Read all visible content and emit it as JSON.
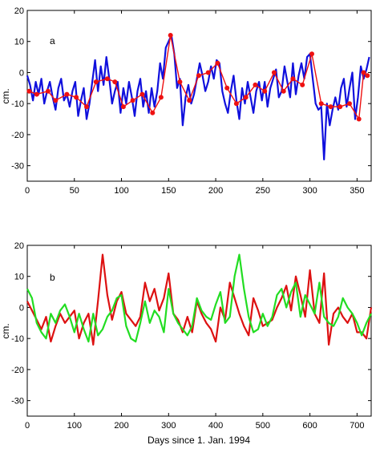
{
  "chart_data": [
    {
      "type": "line",
      "panel_label": "a",
      "xlabel": "",
      "ylabel": "cm.",
      "xlim": [
        0,
        365
      ],
      "ylim": [
        -35,
        20
      ],
      "xticks": [
        0,
        50,
        100,
        150,
        200,
        250,
        300,
        350
      ],
      "yticks": [
        -30,
        -20,
        -10,
        0,
        10,
        20
      ],
      "grid": false,
      "series": [
        {
          "color": "#1010dd",
          "marker": "none",
          "x": [
            0,
            3,
            6,
            9,
            12,
            15,
            18,
            21,
            24,
            27,
            30,
            33,
            36,
            39,
            42,
            45,
            48,
            51,
            54,
            57,
            60,
            63,
            66,
            69,
            72,
            75,
            78,
            81,
            84,
            87,
            90,
            93,
            96,
            99,
            102,
            105,
            108,
            111,
            114,
            117,
            120,
            123,
            126,
            129,
            132,
            135,
            138,
            141,
            144,
            147,
            150,
            153,
            156,
            159,
            162,
            165,
            168,
            171,
            174,
            177,
            180,
            183,
            186,
            189,
            192,
            195,
            198,
            201,
            204,
            207,
            210,
            213,
            216,
            219,
            222,
            225,
            228,
            231,
            234,
            237,
            240,
            243,
            246,
            249,
            252,
            255,
            258,
            261,
            264,
            267,
            270,
            273,
            276,
            279,
            282,
            285,
            288,
            291,
            294,
            297,
            300,
            303,
            306,
            309,
            312,
            315,
            318,
            321,
            324,
            327,
            330,
            333,
            336,
            339,
            342,
            345,
            348,
            351,
            354,
            357,
            360,
            363
          ],
          "y": [
            -1,
            -4,
            -9,
            -3,
            -7,
            -2,
            -10,
            -6,
            -3,
            -8,
            -12,
            -5,
            -2,
            -9,
            -7,
            -11,
            -6,
            -3,
            -14,
            -9,
            -5,
            -15,
            -10,
            -3,
            4,
            -6,
            2,
            -4,
            5,
            -2,
            -10,
            -6,
            -3,
            -13,
            -5,
            -10,
            -3,
            -8,
            -14,
            -6,
            -2,
            -11,
            -6,
            -13,
            -5,
            -11,
            -6,
            3,
            -2,
            8,
            10,
            12,
            6,
            -5,
            -2,
            -17,
            -8,
            -4,
            -10,
            -7,
            -2,
            3,
            -1,
            -6,
            -3,
            2,
            -2,
            4,
            3,
            -6,
            -10,
            -13,
            -6,
            -1,
            -9,
            -15,
            -5,
            -10,
            -3,
            -8,
            -13,
            -6,
            -3,
            -9,
            -3,
            -11,
            -5,
            -2,
            1,
            -8,
            -6,
            2,
            -3,
            -8,
            3,
            -7,
            -1,
            3,
            -2,
            5,
            6,
            -2,
            -10,
            -12,
            -11,
            -28,
            -10,
            -17,
            -12,
            -8,
            -12,
            -5,
            -2,
            -11,
            -5,
            0,
            -15,
            -8,
            2,
            -2,
            1,
            5
          ]
        },
        {
          "color": "#ee1111",
          "marker": "circle",
          "x": [
            2,
            10,
            22,
            30,
            42,
            52,
            63,
            73,
            85,
            93,
            102,
            112,
            122,
            133,
            142,
            152,
            162,
            172,
            182,
            192,
            202,
            212,
            222,
            232,
            242,
            252,
            262,
            272,
            282,
            292,
            302,
            312,
            322,
            332,
            342,
            352,
            357,
            361
          ],
          "y": [
            -6,
            -7,
            -6,
            -9,
            -7,
            -8,
            -11,
            -3,
            -2,
            -3,
            -11,
            -9,
            -7,
            -13,
            -8,
            12,
            -3,
            -9,
            -1,
            0,
            3,
            -5,
            -10,
            -8,
            -4,
            -6,
            0,
            -6,
            -2,
            -4,
            6,
            -10,
            -11,
            -11,
            -10,
            -15,
            0,
            -1
          ]
        }
      ]
    },
    {
      "type": "line",
      "panel_label": "b",
      "xlabel": "Days since 1. Jan. 1994",
      "ylabel": "cm.",
      "xlim": [
        0,
        730
      ],
      "ylim": [
        -35,
        20
      ],
      "xticks": [
        0,
        100,
        200,
        300,
        400,
        500,
        600,
        700
      ],
      "yticks": [
        -30,
        -20,
        -10,
        0,
        10,
        20
      ],
      "grid": false,
      "series": [
        {
          "color": "#dd1111",
          "marker": "none",
          "x": [
            0,
            10,
            20,
            30,
            40,
            50,
            60,
            70,
            80,
            90,
            100,
            110,
            120,
            130,
            140,
            150,
            160,
            170,
            180,
            190,
            200,
            210,
            220,
            230,
            240,
            250,
            260,
            270,
            280,
            290,
            300,
            310,
            320,
            330,
            340,
            350,
            360,
            370,
            380,
            390,
            400,
            410,
            420,
            430,
            440,
            450,
            460,
            470,
            480,
            490,
            500,
            510,
            520,
            530,
            540,
            550,
            560,
            570,
            580,
            590,
            600,
            610,
            620,
            630,
            640,
            650,
            660,
            670,
            680,
            690,
            700,
            710,
            720,
            730
          ],
          "y": [
            2,
            -1,
            -4,
            -7,
            -3,
            -11,
            -6,
            -2,
            -5,
            -3,
            -1,
            -10,
            -5,
            -2,
            -12,
            2,
            17,
            4,
            -4,
            2,
            5,
            -2,
            -4,
            -6,
            -3,
            8,
            2,
            6,
            -1,
            3,
            11,
            -2,
            -4,
            -8,
            -3,
            -8,
            2,
            -2,
            -5,
            -7,
            -11,
            0,
            -4,
            8,
            3,
            -2,
            -6,
            -9,
            3,
            -1,
            -6,
            -5,
            -4,
            0,
            3,
            7,
            -1,
            10,
            4,
            -3,
            12,
            -2,
            -5,
            11,
            -12,
            -2,
            0,
            -3,
            -5,
            -2,
            -8,
            -8,
            -10,
            0
          ]
        },
        {
          "color": "#22dd22",
          "marker": "none",
          "x": [
            0,
            10,
            20,
            30,
            40,
            50,
            60,
            70,
            80,
            90,
            100,
            110,
            120,
            130,
            140,
            150,
            160,
            170,
            180,
            190,
            200,
            210,
            220,
            230,
            240,
            250,
            260,
            270,
            280,
            290,
            300,
            310,
            320,
            330,
            340,
            350,
            360,
            370,
            380,
            390,
            400,
            410,
            420,
            430,
            440,
            450,
            460,
            470,
            480,
            490,
            500,
            510,
            520,
            530,
            540,
            550,
            560,
            570,
            580,
            590,
            600,
            610,
            620,
            630,
            640,
            650,
            660,
            670,
            680,
            690,
            700,
            710,
            720,
            730
          ],
          "y": [
            6,
            3,
            -5,
            -8,
            -10,
            -2,
            -5,
            -1,
            1,
            -3,
            -8,
            -2,
            -7,
            -11,
            -2,
            -9,
            -7,
            -3,
            -1,
            3,
            4,
            -6,
            -10,
            -11,
            -5,
            2,
            -5,
            -1,
            -3,
            -8,
            6,
            -2,
            -5,
            -7,
            -9,
            -6,
            3,
            -1,
            -3,
            -4,
            1,
            5,
            -5,
            -3,
            10,
            17,
            6,
            -3,
            -8,
            -7,
            -2,
            -6,
            -3,
            4,
            6,
            0,
            5,
            8,
            -3,
            4,
            1,
            -2,
            8,
            -3,
            -5,
            -6,
            -3,
            3,
            0,
            -2,
            -5,
            -9,
            -5,
            -2
          ]
        }
      ]
    }
  ]
}
